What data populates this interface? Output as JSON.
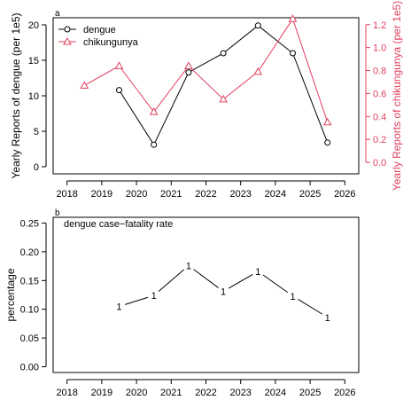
{
  "chart_data": [
    {
      "type": "line",
      "panel_label": "a",
      "x": [
        2018.5,
        2019.5,
        2020.5,
        2021.5,
        2022.5,
        2023.5,
        2024.5,
        2025.5
      ],
      "x_ticks": [
        2018,
        2019,
        2020,
        2021,
        2022,
        2023,
        2024,
        2025,
        2026
      ],
      "xlim": [
        2017.6,
        2026.4
      ],
      "ylabel": "Yearly Reports of dengue (per 1e5)",
      "ylim": [
        -1,
        21
      ],
      "y_ticks": [
        0,
        5,
        10,
        15,
        20
      ],
      "ylabel_right": "Yearly Reports of chikungunya (per 1e5)",
      "ylim_right": [
        -0.1,
        1.26
      ],
      "y_ticks_right": [
        "0.0",
        "0.2",
        "0.4",
        "0.6",
        "0.8",
        "1.0",
        "1.2"
      ],
      "legend_position": "top-left",
      "series": [
        {
          "name": "dengue",
          "axis": "left",
          "marker": "circle",
          "color": "#000000",
          "values": [
            null,
            10.8,
            3.1,
            13.3,
            16.0,
            19.9,
            16.0,
            3.4
          ]
        },
        {
          "name": "chikungunya",
          "axis": "right",
          "marker": "triangle",
          "color": "#e0405e",
          "values": [
            0.67,
            0.84,
            0.44,
            0.84,
            0.55,
            0.79,
            1.25,
            0.35
          ]
        }
      ]
    },
    {
      "type": "line",
      "panel_label": "b",
      "annotation": "dengue case−fatality rate",
      "x": [
        2019.5,
        2020.5,
        2021.5,
        2022.5,
        2023.5,
        2024.5,
        2025.5
      ],
      "x_ticks": [
        2018,
        2019,
        2020,
        2021,
        2022,
        2023,
        2024,
        2025,
        2026
      ],
      "xlim": [
        2017.6,
        2026.4
      ],
      "ylabel": "percentage",
      "ylim": [
        -0.01,
        0.26
      ],
      "y_ticks": [
        "0.00",
        "0.05",
        "0.10",
        "0.15",
        "0.20",
        "0.25"
      ],
      "series": [
        {
          "marker_text": "1",
          "color": "#000000",
          "values": [
            0.105,
            0.124,
            0.176,
            0.131,
            0.166,
            0.123,
            0.086
          ]
        }
      ]
    }
  ]
}
